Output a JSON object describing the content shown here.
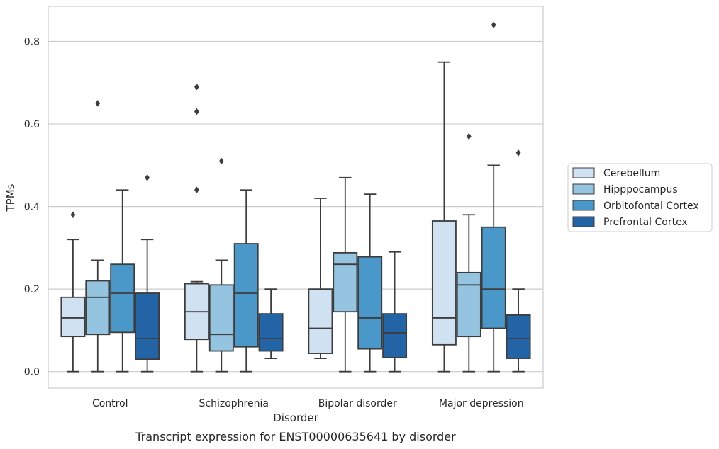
{
  "chart_data": {
    "type": "box",
    "caption": "Transcript expression for ENST00000635641 by disorder",
    "xlabel": "Disorder",
    "ylabel": "TPMs",
    "ylim": [
      -0.04,
      0.885
    ],
    "yticks": [
      0.0,
      0.2,
      0.4,
      0.6,
      0.8
    ],
    "ytick_labels": [
      "0.0",
      "0.2",
      "0.4",
      "0.6",
      "0.8"
    ],
    "grid": "horizontal",
    "legend_position": "right",
    "categories": [
      "Control",
      "Schizophrenia",
      "Bipolar disorder",
      "Major depression"
    ],
    "series": [
      {
        "name": "Cerebellum",
        "color": "#d0e1f2",
        "boxes": [
          {
            "whislo": 0.0,
            "q1": 0.085,
            "med": 0.13,
            "q3": 0.18,
            "whishi": 0.32,
            "fliers": [
              0.38
            ]
          },
          {
            "whislo": 0.0,
            "q1": 0.078,
            "med": 0.145,
            "q3": 0.213,
            "whishi": 0.218,
            "fliers": [
              0.44,
              0.63,
              0.69
            ]
          },
          {
            "whislo": 0.032,
            "q1": 0.044,
            "med": 0.105,
            "q3": 0.2,
            "whishi": 0.42,
            "fliers": []
          },
          {
            "whislo": 0.0,
            "q1": 0.065,
            "med": 0.13,
            "q3": 0.365,
            "whishi": 0.75,
            "fliers": []
          }
        ]
      },
      {
        "name": "Hipppocampus",
        "color": "#94c4df",
        "boxes": [
          {
            "whislo": 0.0,
            "q1": 0.09,
            "med": 0.18,
            "q3": 0.22,
            "whishi": 0.27,
            "fliers": [
              0.65
            ]
          },
          {
            "whislo": 0.0,
            "q1": 0.05,
            "med": 0.09,
            "q3": 0.21,
            "whishi": 0.27,
            "fliers": [
              0.51
            ]
          },
          {
            "whislo": 0.0,
            "q1": 0.145,
            "med": 0.26,
            "q3": 0.288,
            "whishi": 0.47,
            "fliers": []
          },
          {
            "whislo": 0.0,
            "q1": 0.085,
            "med": 0.21,
            "q3": 0.24,
            "whishi": 0.38,
            "fliers": [
              0.57
            ]
          }
        ]
      },
      {
        "name": "Orbitofontal Cortex",
        "color": "#4a98c9",
        "boxes": [
          {
            "whislo": 0.0,
            "q1": 0.095,
            "med": 0.19,
            "q3": 0.26,
            "whishi": 0.44,
            "fliers": []
          },
          {
            "whislo": 0.0,
            "q1": 0.06,
            "med": 0.19,
            "q3": 0.31,
            "whishi": 0.44,
            "fliers": []
          },
          {
            "whislo": 0.0,
            "q1": 0.055,
            "med": 0.13,
            "q3": 0.278,
            "whishi": 0.43,
            "fliers": []
          },
          {
            "whislo": 0.0,
            "q1": 0.105,
            "med": 0.2,
            "q3": 0.35,
            "whishi": 0.5,
            "fliers": [
              0.84
            ]
          }
        ]
      },
      {
        "name": "Prefrontal Cortex",
        "color": "#2264a5",
        "boxes": [
          {
            "whislo": 0.0,
            "q1": 0.03,
            "med": 0.08,
            "q3": 0.19,
            "whishi": 0.32,
            "fliers": [
              0.47
            ]
          },
          {
            "whislo": 0.032,
            "q1": 0.05,
            "med": 0.08,
            "q3": 0.14,
            "whishi": 0.2,
            "fliers": []
          },
          {
            "whislo": 0.0,
            "q1": 0.034,
            "med": 0.094,
            "q3": 0.14,
            "whishi": 0.29,
            "fliers": []
          },
          {
            "whislo": 0.0,
            "q1": 0.032,
            "med": 0.08,
            "q3": 0.137,
            "whishi": 0.2,
            "fliers": [
              0.53
            ]
          }
        ]
      }
    ]
  }
}
